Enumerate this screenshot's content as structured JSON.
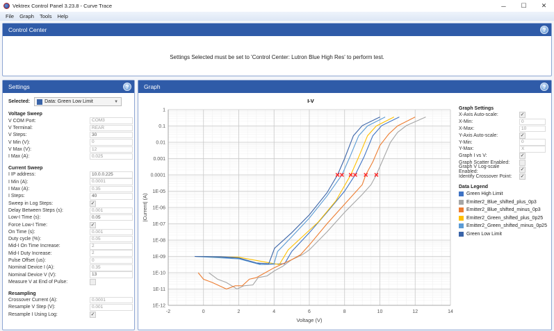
{
  "window": {
    "title": "Vektrex Control Panel 3.23.8 - Curve Trace",
    "minimize": "─",
    "maximize": "☐",
    "close": "✕"
  },
  "menu": [
    "File",
    "Graph",
    "Tools",
    "Help"
  ],
  "control_center": {
    "title": "Control Center",
    "message": "Settings Selected must be set to 'Control Center: Lutron Blue High Res' to perform test.",
    "help": "?"
  },
  "settings": {
    "title": "Settings",
    "help": "?",
    "selected_label": "Selected:",
    "selected_value": "Data: Green Low Limit",
    "selected_color": "#3a64a8",
    "voltage_heading": "Voltage Sweep",
    "voltage": [
      {
        "label": "V COM Port:",
        "value": "COM3"
      },
      {
        "label": "V Terminal:",
        "value": "REAR"
      },
      {
        "label": "V Steps:",
        "value": "30",
        "dark": true
      },
      {
        "label": "V Min (V):",
        "value": "0"
      },
      {
        "label": "V Max (V):",
        "value": "12"
      },
      {
        "label": "I Max (A):",
        "value": "0.025"
      }
    ],
    "current_heading": "Current Sweep",
    "current": [
      {
        "label": "I IP address:",
        "value": "10.0.0.225",
        "dark": true
      },
      {
        "label": "I Min (A):",
        "value": "0.0001"
      },
      {
        "label": "I Max (A):",
        "value": "0.35"
      },
      {
        "label": "I Steps:",
        "value": "40",
        "dark": true
      },
      {
        "label": "Sweep in Log Steps:",
        "check": true
      },
      {
        "label": "Delay Between Steps (s):",
        "value": "0.001"
      },
      {
        "label": "Low-I Time (s):",
        "value": "0.05",
        "dark": true
      },
      {
        "label": "Force Low-I Time:",
        "check": true
      },
      {
        "label": "On Time (s):",
        "value": "0.001"
      },
      {
        "label": "Duty cycle (%):",
        "value": "0.05"
      },
      {
        "label": "Mid-I On Time Increase:",
        "value": "2"
      },
      {
        "label": "Mid-I Duty Increase:",
        "value": "2"
      },
      {
        "label": "Pulse Offset (us):",
        "value": "0"
      },
      {
        "label": "Nominal Device I (A):",
        "value": "0.35"
      },
      {
        "label": "Nominal Device V (V):",
        "value": "13",
        "dark": true
      },
      {
        "label": "Measure V at End of Pulse:",
        "check": false
      }
    ],
    "resampling_heading": "Resampling",
    "resampling": [
      {
        "label": "Crossover Current (A):",
        "value": "0.0001"
      },
      {
        "label": "Resample V Step (V):",
        "value": "0.001"
      },
      {
        "label": "Resample I Using Log:",
        "check": true
      }
    ]
  },
  "graph": {
    "title": "Graph",
    "help": "?",
    "settings_heading": "Graph Settings",
    "settings": [
      {
        "label": "X-Axis Auto-scale:",
        "check": true
      },
      {
        "label": "X-Min:",
        "value": "0"
      },
      {
        "label": "X-Max:",
        "value": "10"
      },
      {
        "label": "Y-Axis Auto-scale:",
        "check": true
      },
      {
        "label": "Y-Min:",
        "value": "0"
      },
      {
        "label": "Y-Max:",
        "value": "X"
      },
      {
        "label": "Graph I vs V:",
        "check": true
      },
      {
        "label": "Graph Scatter Enabled:",
        "check": false
      },
      {
        "label": "Graph V Log-scale Enabled:",
        "check": true
      },
      {
        "label": "Identify Crossover Point:",
        "check": true
      }
    ],
    "legend_heading": "Data Legend"
  },
  "chart_data": {
    "type": "line",
    "title": "I-V",
    "xlabel": "Voltage (V)",
    "ylabel": "|Current| (A)",
    "xlim": [
      -2,
      14
    ],
    "ylim_log10": [
      -12,
      0
    ],
    "yscale": "log",
    "grid": true,
    "xticks": [
      "-2",
      "0",
      "2",
      "4",
      "6",
      "8",
      "10",
      "12",
      "14"
    ],
    "yticks": [
      "1",
      "0.1",
      "0.01",
      "0.001",
      "0.0001",
      "1E-05",
      "1E-06",
      "1E-07",
      "1E-08",
      "1E-09",
      "1E-10",
      "1E-11",
      "1E-12"
    ],
    "crossover_current": 0.0001,
    "crossover_color": "#ff2020",
    "series": [
      {
        "name": "Green High Limit",
        "color": "#3f73c4",
        "crossover_v": 8.6,
        "points": [
          [
            -0.5,
            -9
          ],
          [
            2,
            -9.1
          ],
          [
            3.3,
            -9.5
          ],
          [
            4.6,
            -9.45
          ],
          [
            5,
            -8.7
          ],
          [
            6,
            -7.55
          ],
          [
            7,
            -6.3
          ],
          [
            8,
            -5
          ],
          [
            8.6,
            -4
          ],
          [
            9.1,
            -2.9
          ],
          [
            9.6,
            -1.6
          ],
          [
            10.1,
            -0.98
          ],
          [
            11.1,
            -0.45
          ]
        ]
      },
      {
        "name": "Emitter2_Blue_shifted_plus_0p3",
        "color": "#a6a6a6",
        "crossover_v": 9.8,
        "points": [
          [
            0.3,
            -10
          ],
          [
            0.8,
            -10.4
          ],
          [
            1.3,
            -10.6
          ],
          [
            1.9,
            -11
          ],
          [
            2.3,
            -10.8
          ],
          [
            2.8,
            -10.75
          ],
          [
            3.1,
            -10.3
          ],
          [
            3.6,
            -10.2
          ],
          [
            4,
            -9.9
          ],
          [
            4.5,
            -9.6
          ],
          [
            5,
            -9.2
          ],
          [
            5.6,
            -8.9
          ],
          [
            6,
            -8.6
          ],
          [
            7,
            -7.5
          ],
          [
            8,
            -6.3
          ],
          [
            9,
            -5.2
          ],
          [
            9.5,
            -4.6
          ],
          [
            9.8,
            -4
          ],
          [
            10.2,
            -3
          ],
          [
            10.6,
            -2
          ],
          [
            11,
            -1.4
          ],
          [
            11.5,
            -0.98
          ],
          [
            12.6,
            -0.45
          ]
        ]
      },
      {
        "name": "Emitter2_Blue_shifted_minus_0p3",
        "color": "#ed7d31",
        "crossover_v": 9.2,
        "points": [
          [
            -0.3,
            -10
          ],
          [
            0,
            -10.4
          ],
          [
            0.5,
            -10.6
          ],
          [
            1.3,
            -11
          ],
          [
            1.8,
            -10.8
          ],
          [
            2.2,
            -10.8
          ],
          [
            2.6,
            -10.4
          ],
          [
            3,
            -10.3
          ],
          [
            3.5,
            -10
          ],
          [
            4,
            -9.7
          ],
          [
            5,
            -9.2
          ],
          [
            5.5,
            -8.9
          ],
          [
            6,
            -8.3
          ],
          [
            7,
            -7
          ],
          [
            8,
            -5.8
          ],
          [
            9,
            -4.6
          ],
          [
            9.2,
            -4
          ],
          [
            9.6,
            -3.2
          ],
          [
            10,
            -2.2
          ],
          [
            10.5,
            -1.5
          ],
          [
            11,
            -1
          ],
          [
            12,
            -0.45
          ]
        ]
      },
      {
        "name": "Emitter2_Green_shifted_plus_0p25",
        "color": "#ffc000",
        "crossover_v": 8.35,
        "points": [
          [
            -0.5,
            -9
          ],
          [
            2,
            -9.05
          ],
          [
            3.5,
            -9.35
          ],
          [
            4.3,
            -9.5
          ],
          [
            4.8,
            -8.6
          ],
          [
            5.5,
            -7.9
          ],
          [
            6.5,
            -6.9
          ],
          [
            7.5,
            -5.6
          ],
          [
            8.35,
            -4
          ],
          [
            8.8,
            -2.9
          ],
          [
            9.3,
            -1.6
          ],
          [
            9.8,
            -1
          ],
          [
            10.8,
            -0.45
          ]
        ]
      },
      {
        "name": "Emitter2_Green_shifted_minus_0p25",
        "color": "#5b9bd5",
        "crossover_v": 7.85,
        "points": [
          [
            -0.5,
            -9
          ],
          [
            2,
            -9.15
          ],
          [
            3.2,
            -9.5
          ],
          [
            4,
            -9.45
          ],
          [
            4.2,
            -8.7
          ],
          [
            5,
            -7.8
          ],
          [
            6,
            -6.65
          ],
          [
            7,
            -5.3
          ],
          [
            7.85,
            -4
          ],
          [
            8.3,
            -2.9
          ],
          [
            8.8,
            -1.6
          ],
          [
            9.3,
            -1
          ],
          [
            10.3,
            -0.45
          ]
        ]
      },
      {
        "name": "Green Low Limit",
        "color": "#3a64a8",
        "crossover_v": 7.6,
        "points": [
          [
            -0.5,
            -9
          ],
          [
            1,
            -9.02
          ],
          [
            2,
            -9.1
          ],
          [
            3,
            -9.4
          ],
          [
            3.7,
            -9.45
          ],
          [
            4.03,
            -8.5
          ],
          [
            5,
            -7.55
          ],
          [
            6,
            -6.45
          ],
          [
            7,
            -5.1
          ],
          [
            7.6,
            -4
          ],
          [
            8,
            -3
          ],
          [
            8.5,
            -1.6
          ],
          [
            9,
            -0.98
          ],
          [
            10,
            -0.45
          ]
        ]
      }
    ]
  }
}
